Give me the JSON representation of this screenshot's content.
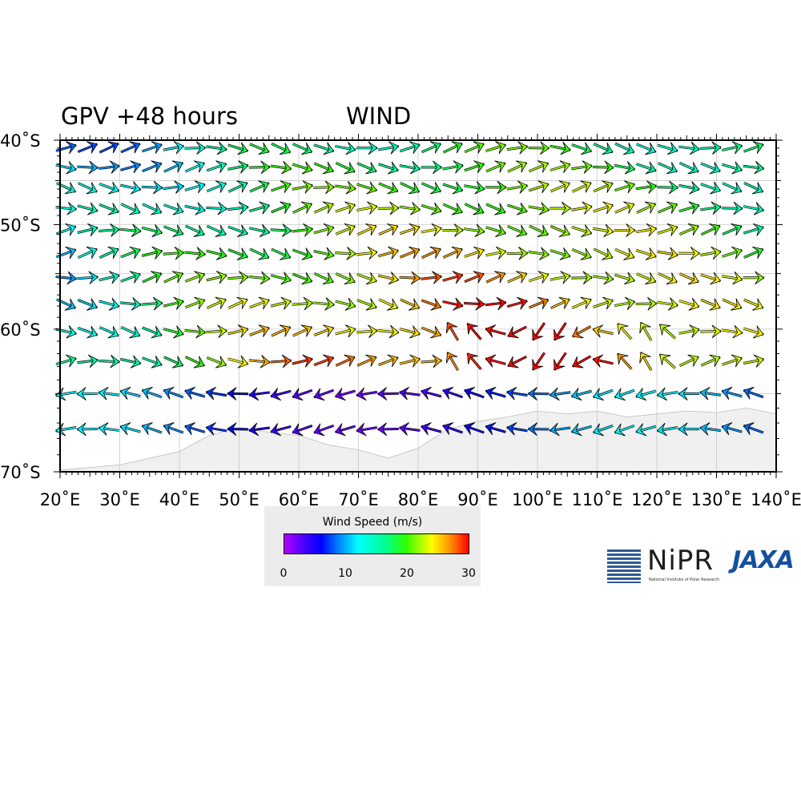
{
  "title_left": "GPV +48 hours",
  "title_right": "WIND",
  "map": {
    "lon_range": [
      20,
      140
    ],
    "lat_range": [
      -70,
      -40
    ],
    "lon_labels": [
      "20˚E",
      "30˚E",
      "40˚E",
      "50˚E",
      "60˚E",
      "70˚E",
      "80˚E",
      "90˚E",
      "100˚E",
      "110˚E",
      "120˚E",
      "130˚E",
      "140˚E"
    ],
    "lat_labels": [
      "40˚S",
      "50˚S",
      "60˚S",
      "70˚S"
    ],
    "land_color": "#f0f0f0",
    "grid": true
  },
  "colorbar": {
    "label": "Wind Speed (m/s)",
    "ticks": [
      "0",
      "10",
      "20",
      "30"
    ],
    "range": [
      0,
      30
    ],
    "colors": [
      "#b400ff",
      "#0000ff",
      "#00ffff",
      "#30ff00",
      "#ffff00",
      "#ff0000"
    ]
  },
  "logos": {
    "nipr_text": "NiPR",
    "nipr_sub": "National Institute of Polar Research",
    "jaxa_text": "JAXA"
  }
}
